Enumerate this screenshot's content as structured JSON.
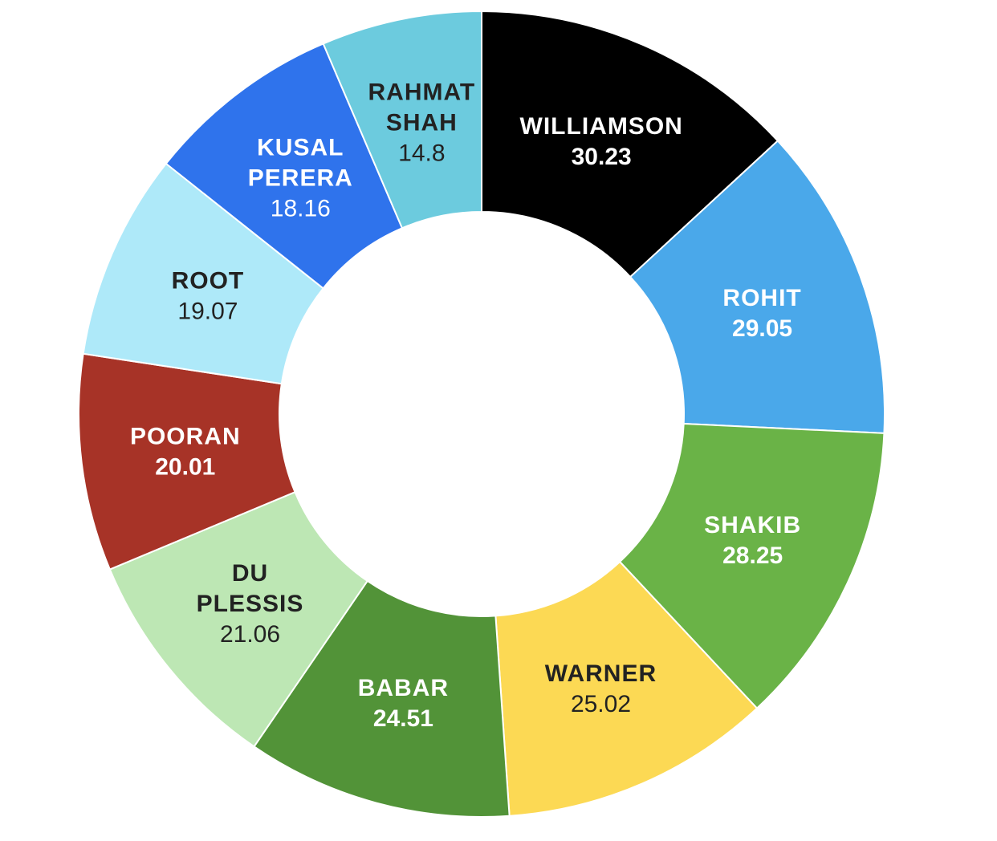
{
  "chart_data": {
    "type": "pie",
    "donut": true,
    "segments": [
      {
        "name": [
          "WILLIAMSON"
        ],
        "value": 30.23,
        "value_label": "30.23",
        "color": "#000000",
        "text_color": "#ffffff",
        "value_bold": true
      },
      {
        "name": [
          "ROHIT"
        ],
        "value": 29.05,
        "value_label": "29.05",
        "color": "#4aa8ea",
        "text_color": "#ffffff",
        "value_bold": true
      },
      {
        "name": [
          "SHAKIB"
        ],
        "value": 28.25,
        "value_label": "28.25",
        "color": "#6ab347",
        "text_color": "#ffffff",
        "value_bold": true
      },
      {
        "name": [
          "WARNER"
        ],
        "value": 25.02,
        "value_label": "25.02",
        "color": "#fcd954",
        "text_color": "#222222",
        "value_bold": false
      },
      {
        "name": [
          "BABAR"
        ],
        "value": 24.51,
        "value_label": "24.51",
        "color": "#529338",
        "text_color": "#ffffff",
        "value_bold": true
      },
      {
        "name": [
          "DU",
          "PLESSIS"
        ],
        "value": 21.06,
        "value_label": "21.06",
        "color": "#bde7b4",
        "text_color": "#222222",
        "value_bold": false
      },
      {
        "name": [
          "POORAN"
        ],
        "value": 20.01,
        "value_label": "20.01",
        "color": "#a73327",
        "text_color": "#ffffff",
        "value_bold": true
      },
      {
        "name": [
          "ROOT"
        ],
        "value": 19.07,
        "value_label": "19.07",
        "color": "#aee9f9",
        "text_color": "#222222",
        "value_bold": false
      },
      {
        "name": [
          "KUSAL",
          "PERERA"
        ],
        "value": 18.16,
        "value_label": "18.16",
        "color": "#2f73ec",
        "text_color": "#ffffff",
        "value_bold": false
      },
      {
        "name": [
          "RAHMAT",
          "SHAH"
        ],
        "value": 14.8,
        "value_label": "14.8",
        "color": "#6ccbde",
        "text_color": "#222222",
        "value_bold": false
      }
    ],
    "start_angle_deg": 0,
    "direction": "clockwise"
  }
}
